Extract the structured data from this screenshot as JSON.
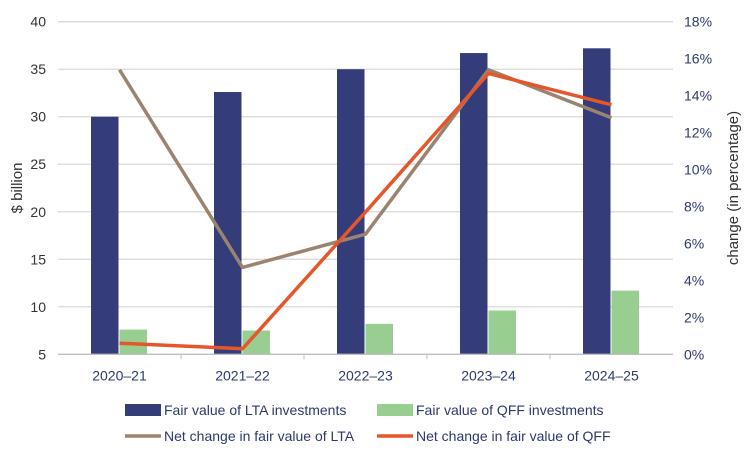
{
  "chart_data": {
    "type": "bar",
    "categories": [
      "2020–21",
      "2021–22",
      "2022–23",
      "2023–24",
      "2024–25"
    ],
    "ylabel": "$ billion",
    "y2label": "change (in percentage)",
    "ylim": [
      5,
      40
    ],
    "yticks": [
      "5",
      "10",
      "15",
      "20",
      "25",
      "30",
      "35",
      "40"
    ],
    "y2lim": [
      0,
      18
    ],
    "y2ticks": [
      "0%",
      "2%",
      "4%",
      "6%",
      "8%",
      "10%",
      "12%",
      "14%",
      "16%",
      "18%"
    ],
    "grid": true,
    "legend_position": "bottom",
    "bar_series": [
      {
        "name": "Fair value of LTA investments",
        "color": "#343C7A",
        "values": [
          30.0,
          32.6,
          35.0,
          36.7,
          37.2
        ]
      },
      {
        "name": "Fair value of QFF investments",
        "color": "#98CE8F",
        "values": [
          7.6,
          7.5,
          8.2,
          9.6,
          11.7
        ]
      }
    ],
    "line_series": [
      {
        "name": "Net change in fair value of LTA",
        "color": "#9A8470",
        "axis": "right",
        "values": [
          15.4,
          4.7,
          6.5,
          15.4,
          12.8
        ]
      },
      {
        "name": "Net change in fair value of QFF",
        "color": "#E5562B",
        "axis": "right",
        "values": [
          0.6,
          0.3,
          7.7,
          15.2,
          13.5
        ]
      }
    ]
  }
}
